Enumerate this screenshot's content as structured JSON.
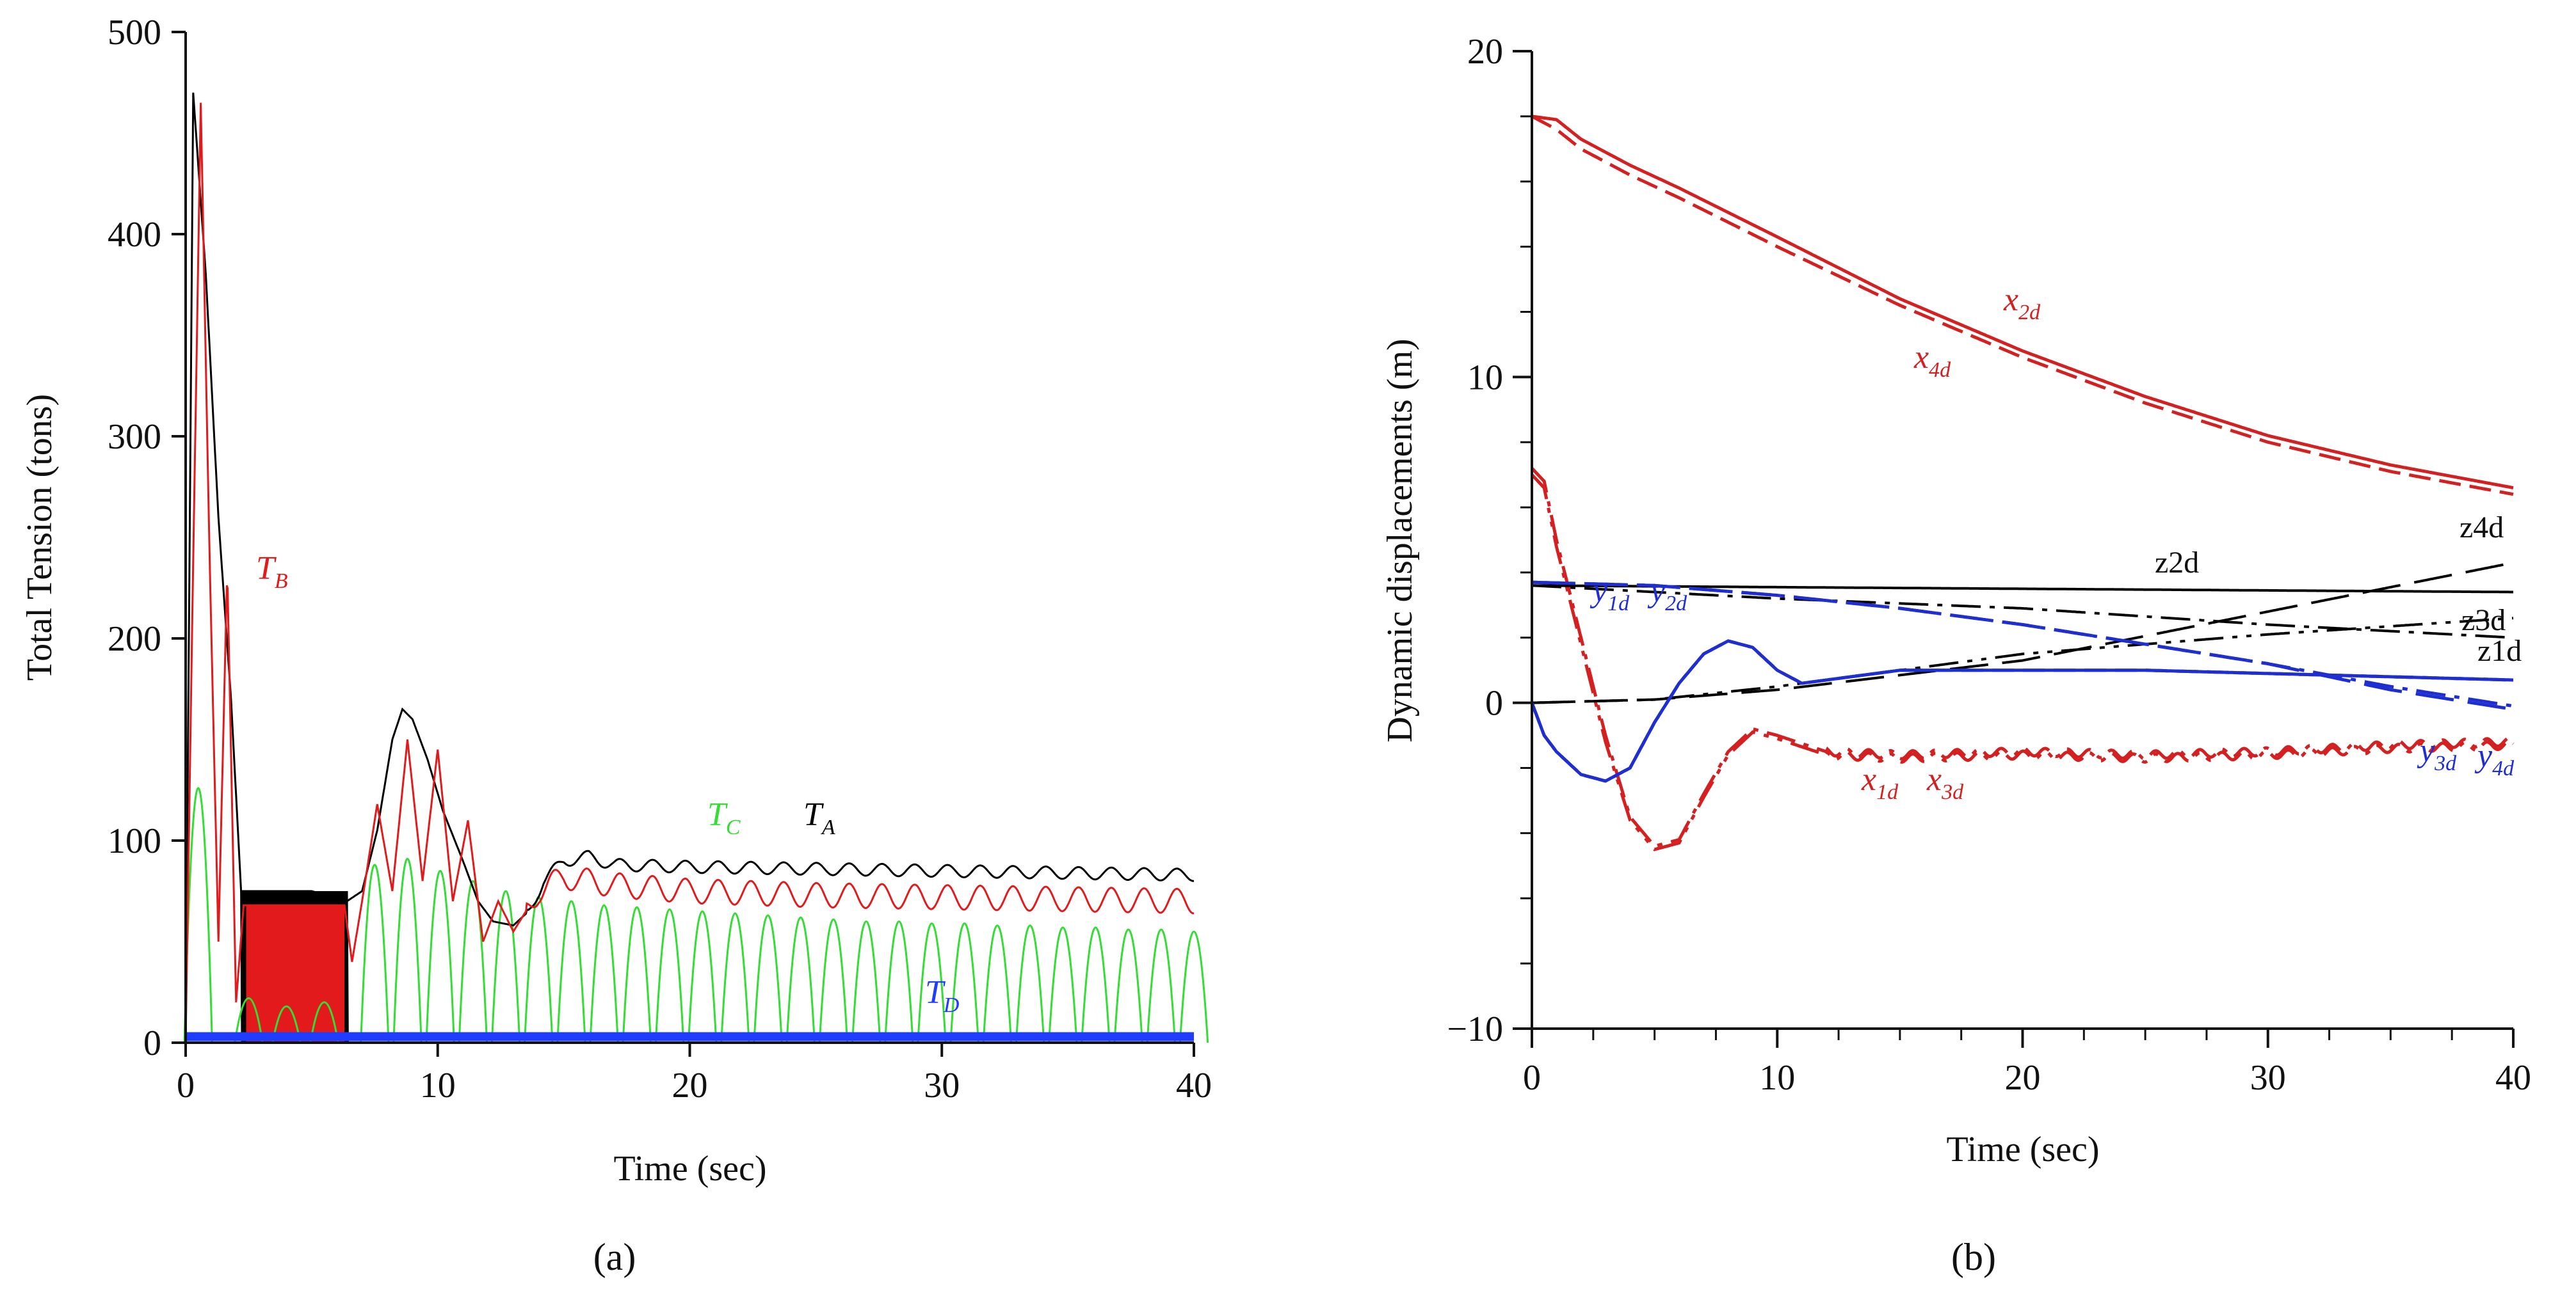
{
  "chart_data": [
    {
      "panel": "a",
      "caption": "(a)",
      "type": "line",
      "xlabel": "Time (sec)",
      "ylabel": "Total Tension (tons)",
      "xlim": [
        0,
        40
      ],
      "ylim": [
        0,
        500
      ],
      "xticks": [
        "0",
        "10",
        "20",
        "30",
        "40"
      ],
      "yticks": [
        "0",
        "100",
        "200",
        "300",
        "400",
        "500"
      ],
      "series": [
        {
          "name": "T_A",
          "label_main": "T",
          "label_sub": "A",
          "color": "#000000",
          "x": [
            0,
            0.3,
            0.8,
            1.3,
            1.8,
            2.2,
            3.0,
            5.0,
            6.4,
            7.0,
            7.6,
            8.2,
            8.6,
            9.0,
            9.6,
            10.2,
            11.0,
            11.6,
            12.2,
            13.0,
            13.6,
            14.2,
            15.0,
            16.0,
            17.0,
            20.0,
            25.0,
            30.0,
            35.0,
            40.0
          ],
          "values": [
            0,
            470,
            380,
            260,
            170,
            75,
            75,
            75,
            70,
            75,
            105,
            150,
            165,
            160,
            140,
            115,
            90,
            70,
            60,
            58,
            65,
            80,
            90,
            92,
            88,
            87,
            86,
            85,
            84,
            83
          ]
        },
        {
          "name": "T_B",
          "label_main": "T",
          "label_sub": "B",
          "color": "#e31a1c",
          "x": [
            0,
            0.25,
            0.6,
            0.95,
            1.3,
            1.65,
            2.0,
            2.3,
            6.3,
            6.6,
            7.0,
            7.6,
            8.2,
            8.8,
            9.4,
            10.0,
            10.6,
            11.2,
            11.8,
            12.4,
            13.0,
            14.0,
            15.0,
            17.0,
            20.0,
            25.0,
            30.0,
            35.0,
            40.0
          ],
          "values": [
            0,
            200,
            465,
            240,
            50,
            235,
            20,
            68,
            68,
            40,
            70,
            118,
            75,
            150,
            80,
            145,
            70,
            110,
            50,
            70,
            55,
            75,
            82,
            78,
            75,
            73,
            72,
            71,
            70
          ]
        },
        {
          "name": "T_C",
          "label_main": "T",
          "label_sub": "C",
          "color": "#33dd33",
          "peaks_x": [
            0.5,
            2.5,
            4.0,
            5.5,
            7.5,
            8.8,
            10.1,
            11.4,
            12.7,
            14.0,
            15.3,
            16.6,
            17.9,
            19.2,
            20.5,
            21.8,
            23.1,
            24.4,
            25.7,
            27.0,
            28.3,
            29.6,
            30.9,
            32.2,
            33.5,
            34.8,
            36.1,
            37.4,
            38.7,
            40.0
          ],
          "peaks": [
            126,
            22,
            18,
            20,
            88,
            91,
            85,
            80,
            75,
            72,
            70,
            68,
            67,
            66,
            65,
            64,
            63,
            62,
            61,
            60,
            60,
            59,
            59,
            58,
            58,
            57,
            57,
            56,
            56,
            55
          ]
        },
        {
          "name": "T_D",
          "label_main": "T",
          "label_sub": "D",
          "color": "#1f3cff",
          "x": [
            0,
            40
          ],
          "values": [
            3,
            3
          ]
        }
      ]
    },
    {
      "panel": "b",
      "caption": "(b)",
      "type": "line",
      "xlabel": "Time (sec)",
      "ylabel": "Dynamic displacements (m)",
      "xlim": [
        0,
        40
      ],
      "ylim": [
        -10,
        20
      ],
      "xticks": [
        "0",
        "10",
        "20",
        "30",
        "40"
      ],
      "yticks": [
        "−10",
        "0",
        "10",
        "20"
      ],
      "series": [
        {
          "name": "x2d",
          "label_main": "x",
          "label_sub": "2d",
          "color": "#d42020",
          "dash": "solid",
          "x": [
            0,
            1,
            2,
            4,
            6,
            10,
            15,
            20,
            25,
            30,
            35,
            40
          ],
          "values": [
            18.0,
            17.9,
            17.3,
            16.5,
            15.8,
            14.3,
            12.4,
            10.8,
            9.4,
            8.2,
            7.3,
            6.6
          ]
        },
        {
          "name": "x4d",
          "label_main": "x",
          "label_sub": "4d",
          "color": "#d42020",
          "dash": "dashed",
          "x": [
            0,
            1,
            2,
            4,
            6,
            10,
            15,
            20,
            25,
            30,
            35,
            40
          ],
          "values": [
            18.0,
            17.6,
            17.0,
            16.2,
            15.5,
            14.0,
            12.2,
            10.6,
            9.2,
            8.0,
            7.1,
            6.4
          ]
        },
        {
          "name": "x1d",
          "label_main": "x",
          "label_sub": "1d",
          "color": "#d42020",
          "dash": "dashdot",
          "x": [
            0,
            0.5,
            1.0,
            2.0,
            3.0,
            4.0,
            5.0,
            6.0,
            7.0,
            8.0,
            9.0,
            10.0,
            12.0,
            15.0,
            20.0,
            25.0,
            30.0,
            35.0,
            40.0
          ],
          "values": [
            7.2,
            6.8,
            5.0,
            2.0,
            -1.0,
            -3.5,
            -4.4,
            -4.2,
            -2.8,
            -1.5,
            -0.8,
            -1.0,
            -1.5,
            -1.6,
            -1.5,
            -1.6,
            -1.5,
            -1.3,
            -1.2
          ]
        },
        {
          "name": "x3d",
          "label_main": "x",
          "label_sub": "3d",
          "color": "#d42020",
          "dash": "dashdot2",
          "x": [
            0,
            0.5,
            1.0,
            2.0,
            3.0,
            4.0,
            5.0,
            6.0,
            7.0,
            8.0,
            9.0,
            10.0,
            12.0,
            15.0,
            20.0,
            25.0,
            30.0,
            35.0,
            40.0
          ],
          "values": [
            7.0,
            6.6,
            4.8,
            1.8,
            -1.2,
            -3.6,
            -4.5,
            -4.3,
            -2.9,
            -1.6,
            -0.9,
            -1.1,
            -1.6,
            -1.7,
            -1.6,
            -1.7,
            -1.6,
            -1.4,
            -1.3
          ]
        },
        {
          "name": "z2d",
          "label_main": "z2d",
          "label_sub": "",
          "color": "#000000",
          "dash": "solid",
          "x": [
            0,
            10,
            20,
            30,
            40
          ],
          "values": [
            3.6,
            3.55,
            3.5,
            3.45,
            3.4
          ]
        },
        {
          "name": "z4d",
          "label_main": "z4d",
          "label_sub": "",
          "color": "#000000",
          "dash": "longdash",
          "x": [
            0,
            5,
            10,
            20,
            30,
            40
          ],
          "values": [
            0,
            0.1,
            0.4,
            1.3,
            2.8,
            4.3
          ]
        },
        {
          "name": "z3d",
          "label_main": "z3d",
          "label_sub": "",
          "color": "#000000",
          "dash": "dashdot",
          "x": [
            0,
            10,
            20,
            30,
            40
          ],
          "values": [
            3.6,
            3.2,
            2.9,
            2.4,
            2.0
          ]
        },
        {
          "name": "z1d",
          "label_main": "z1d",
          "label_sub": "",
          "color": "#000000",
          "dash": "dashdot2",
          "x": [
            0,
            5,
            10,
            15,
            20,
            30,
            40
          ],
          "values": [
            0,
            0.1,
            0.5,
            1.0,
            1.5,
            2.1,
            2.6
          ]
        },
        {
          "name": "y1d",
          "label_main": "y",
          "label_sub": "1d",
          "color": "#1f2ed0",
          "dash": "solid",
          "x": [
            0,
            0.5,
            1.0,
            2.0,
            3.0,
            4.0,
            5.0,
            6.0,
            7.0,
            8.0,
            9.0,
            10.0,
            11.0,
            12.0,
            15.0,
            20.0,
            25.0,
            30.0,
            35.0,
            40.0
          ],
          "values": [
            0,
            -1.0,
            -1.5,
            -2.2,
            -2.4,
            -2.0,
            -0.6,
            0.6,
            1.5,
            1.9,
            1.7,
            1.0,
            0.6,
            0.7,
            1.0,
            1.0,
            1.0,
            0.9,
            0.8,
            0.7
          ]
        },
        {
          "name": "y2d",
          "label_main": "y",
          "label_sub": "2d",
          "color": "#1f2ed0",
          "dash": "dashed",
          "x": [
            0,
            0.5,
            1.0,
            2.0,
            3.0,
            4.0,
            5.0,
            6.0,
            7.0,
            8.0,
            9.0,
            10.0,
            11.0,
            12.0,
            15.0,
            20.0,
            25.0,
            30.0,
            35.0,
            40.0
          ],
          "values": [
            0,
            -1.0,
            -1.5,
            -2.2,
            -2.4,
            -2.0,
            -0.6,
            0.6,
            1.5,
            1.9,
            1.7,
            1.0,
            0.6,
            0.7,
            1.0,
            1.0,
            1.0,
            0.9,
            0.8,
            0.7
          ]
        },
        {
          "name": "y3d",
          "label_main": "y",
          "label_sub": "3d",
          "color": "#1f2ed0",
          "dash": "longdash",
          "x": [
            0,
            5,
            10,
            15,
            20,
            25,
            30,
            35,
            40
          ],
          "values": [
            3.7,
            3.6,
            3.3,
            2.9,
            2.4,
            1.8,
            1.2,
            0.4,
            -0.2
          ]
        },
        {
          "name": "y4d",
          "label_main": "y",
          "label_sub": "4d",
          "color": "#1f2ed0",
          "dash": "dashdot",
          "x": [
            0,
            5,
            10,
            15,
            20,
            25,
            30,
            35,
            40
          ],
          "values": [
            3.7,
            3.6,
            3.3,
            2.9,
            2.4,
            1.8,
            1.2,
            0.5,
            -0.1
          ]
        }
      ]
    }
  ]
}
